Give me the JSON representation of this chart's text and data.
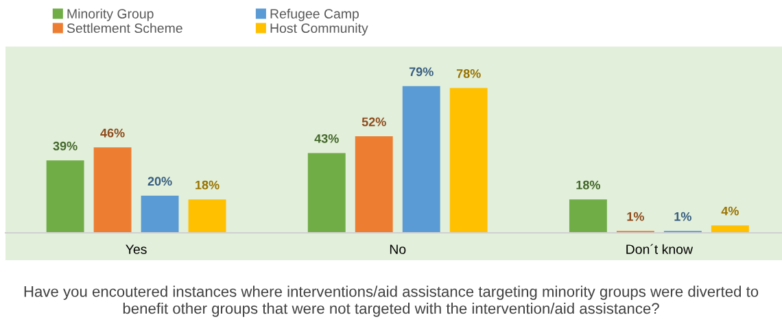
{
  "chart_data": {
    "type": "bar",
    "xlabel": "Have you encoutered instances where interventions/aid assistance targeting minority groups were diverted to benefit other groups that were not targeted with the intervention/aid assistance?",
    "categories": [
      "Yes",
      "No",
      "Don´t know"
    ],
    "series": [
      {
        "name": "Minority Group",
        "color": "#70ad47",
        "values": [
          39,
          43,
          18
        ],
        "value_labels": [
          "39%",
          "43%",
          "18%"
        ]
      },
      {
        "name": "Settlement Scheme",
        "color": "#ed7d31",
        "values": [
          46,
          52,
          1
        ],
        "value_labels": [
          "46%",
          "52%",
          "1%"
        ]
      },
      {
        "name": "Refugee Camp",
        "color": "#5b9bd5",
        "values": [
          20,
          79,
          1
        ],
        "value_labels": [
          "20%",
          "79%",
          "1%"
        ]
      },
      {
        "name": "Host Community",
        "color": "#ffc000",
        "values": [
          18,
          78,
          4
        ],
        "value_labels": [
          "18%",
          "78%",
          "4%"
        ]
      }
    ],
    "legend": "top left",
    "grid": false
  }
}
